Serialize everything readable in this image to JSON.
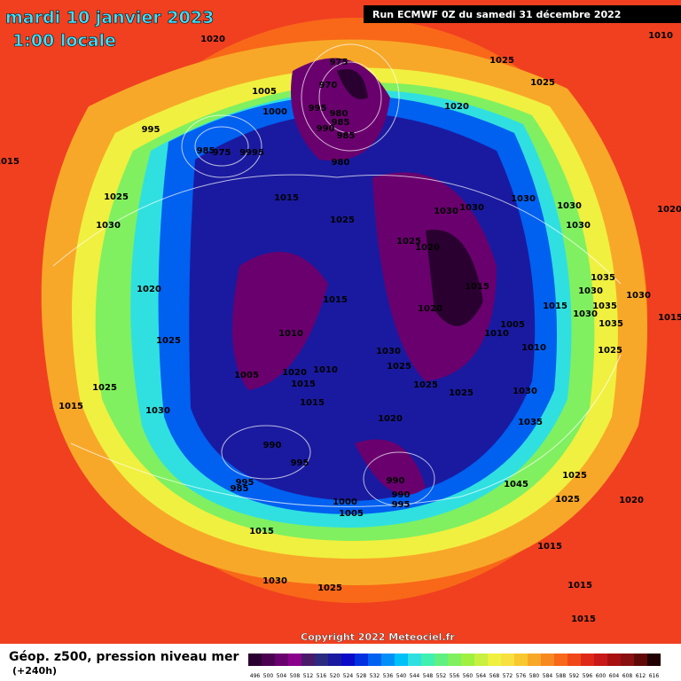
{
  "header": {
    "title": "mardi 10 janvier 2023",
    "subtitle": "1:00 locale",
    "run": "Run ECMWF 0Z du samedi 31 décembre 2022"
  },
  "map": {
    "pressure_labels": [
      "1020",
      "975",
      "1025",
      "1010",
      "970",
      "1005",
      "995",
      "1000",
      "1025",
      "1020",
      "980",
      "995",
      "985",
      "990",
      "985",
      "985",
      "975",
      "9995",
      "980",
      "1015",
      "1025",
      "1015",
      "1030",
      "1030",
      "1030",
      "1030",
      "1020",
      "1025",
      "1030",
      "1030",
      "1025",
      "1020",
      "1015",
      "1035",
      "1020",
      "1030",
      "1030",
      "1015",
      "1015",
      "1035",
      "1020",
      "1030",
      "1015",
      "1035",
      "1005",
      "1010",
      "1010",
      "1025",
      "1030",
      "1010",
      "1025",
      "1025",
      "1020",
      "1010",
      "1005",
      "1025",
      "1015",
      "1025",
      "1025",
      "1030",
      "1015",
      "1015",
      "1030",
      "1020",
      "1035",
      "990",
      "995",
      "1025",
      "995",
      "990",
      "985",
      "1045",
      "990",
      "995",
      "1025",
      "1020",
      "1000",
      "1005",
      "1015",
      "1015",
      "1030",
      "1025",
      "1015",
      "1015"
    ]
  },
  "copyright": "Copyright 2022 Meteociel.fr",
  "legend": {
    "title": "Géop. z500, pression niveau mer",
    "lead": "(+240h)",
    "levels": [
      496,
      500,
      504,
      508,
      512,
      516,
      520,
      524,
      528,
      532,
      536,
      540,
      544,
      548,
      552,
      556,
      560,
      564,
      568,
      572,
      576,
      580,
      584,
      588,
      592,
      596,
      600,
      604,
      608,
      612,
      616
    ],
    "colors": [
      "#2a0030",
      "#4b0050",
      "#6a006e",
      "#8a008c",
      "#4a1a6a",
      "#2a2a80",
      "#1a1aa0",
      "#0a0ac8",
      "#0030e0",
      "#0060f0",
      "#0090f8",
      "#00c0f8",
      "#30e0e0",
      "#40f0b0",
      "#60f080",
      "#80f060",
      "#a0f040",
      "#c8f040",
      "#f0f040",
      "#f8e040",
      "#f8c830",
      "#f8a828",
      "#f88820",
      "#f86818",
      "#f04818",
      "#e02818",
      "#c81818",
      "#a81010",
      "#881010",
      "#600808",
      "#200000"
    ]
  }
}
